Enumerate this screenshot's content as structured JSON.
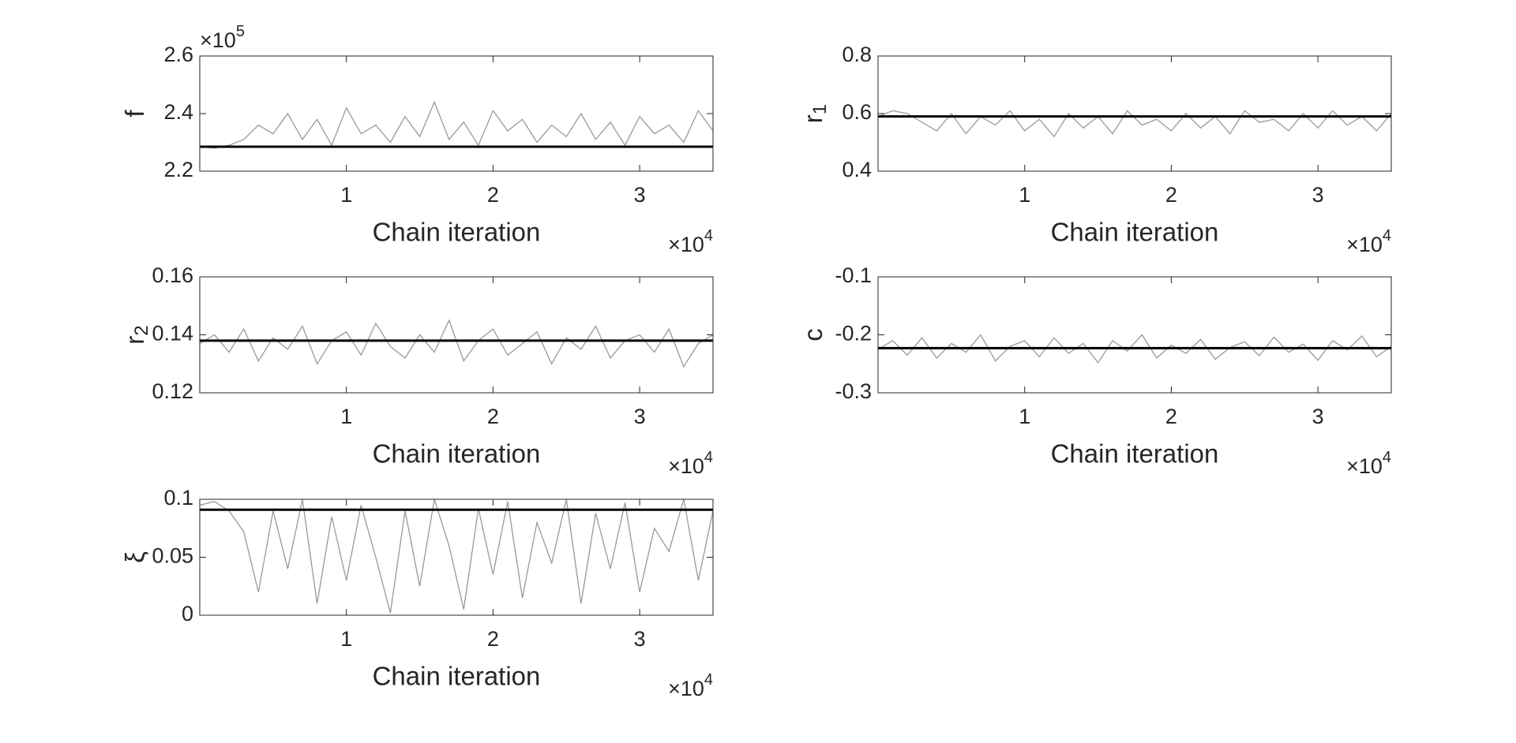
{
  "chart_data": [
    {
      "type": "line",
      "ylabel": "f",
      "xlabel": "Chain iteration",
      "x_multiplier": {
        "base": "×10",
        "power": "4"
      },
      "y_multiplier": {
        "base": "×10",
        "power": "5"
      },
      "xlim": [
        0,
        35000
      ],
      "xticks": [
        {
          "value": 10000,
          "label": "1"
        },
        {
          "value": 20000,
          "label": "2"
        },
        {
          "value": 30000,
          "label": "3"
        }
      ],
      "ylim": [
        220000,
        260000
      ],
      "yticks": [
        {
          "value": 220000,
          "label": "2.2"
        },
        {
          "value": 240000,
          "label": "2.4"
        },
        {
          "value": 260000,
          "label": "2.6"
        }
      ],
      "x": [
        0,
        1000,
        2000,
        3000,
        4000,
        5000,
        6000,
        7000,
        8000,
        9000,
        10000,
        11000,
        12000,
        13000,
        14000,
        15000,
        16000,
        17000,
        18000,
        19000,
        20000,
        21000,
        22000,
        23000,
        24000,
        25000,
        26000,
        27000,
        28000,
        29000,
        30000,
        31000,
        32000,
        33000,
        34000,
        35000
      ],
      "values": [
        228500,
        228000,
        229000,
        231000,
        236000,
        233000,
        240000,
        231000,
        238000,
        229000,
        242000,
        233000,
        236000,
        230000,
        239000,
        232000,
        244000,
        231000,
        237000,
        229000,
        241000,
        234000,
        238000,
        230000,
        236000,
        232000,
        240000,
        231000,
        237000,
        229000,
        239000,
        233000,
        236000,
        230000,
        241000,
        234000
      ],
      "color": "#999999",
      "reference_line": {
        "value": 228500,
        "color": "#000000"
      }
    },
    {
      "type": "line",
      "ylabel": "r",
      "ylabel_subscript": "1",
      "xlabel": "Chain iteration",
      "x_multiplier": {
        "base": "×10",
        "power": "4"
      },
      "xlim": [
        0,
        35000
      ],
      "xticks": [
        {
          "value": 10000,
          "label": "1"
        },
        {
          "value": 20000,
          "label": "2"
        },
        {
          "value": 30000,
          "label": "3"
        }
      ],
      "ylim": [
        0.4,
        0.8
      ],
      "yticks": [
        0.4,
        0.6,
        0.8
      ],
      "x": [
        0,
        1000,
        2000,
        3000,
        4000,
        5000,
        6000,
        7000,
        8000,
        9000,
        10000,
        11000,
        12000,
        13000,
        14000,
        15000,
        16000,
        17000,
        18000,
        19000,
        20000,
        21000,
        22000,
        23000,
        24000,
        25000,
        26000,
        27000,
        28000,
        29000,
        30000,
        31000,
        32000,
        33000,
        34000,
        35000
      ],
      "values": [
        0.59,
        0.61,
        0.6,
        0.57,
        0.54,
        0.6,
        0.53,
        0.59,
        0.56,
        0.61,
        0.54,
        0.58,
        0.52,
        0.6,
        0.55,
        0.59,
        0.53,
        0.61,
        0.56,
        0.58,
        0.54,
        0.6,
        0.55,
        0.59,
        0.53,
        0.61,
        0.57,
        0.58,
        0.54,
        0.6,
        0.55,
        0.61,
        0.56,
        0.59,
        0.54,
        0.6
      ],
      "color": "#999999",
      "reference_line": {
        "value": 0.59,
        "color": "#000000"
      }
    },
    {
      "type": "line",
      "ylabel": "r",
      "ylabel_subscript": "2",
      "xlabel": "Chain iteration",
      "x_multiplier": {
        "base": "×10",
        "power": "4"
      },
      "xlim": [
        0,
        35000
      ],
      "xticks": [
        {
          "value": 10000,
          "label": "1"
        },
        {
          "value": 20000,
          "label": "2"
        },
        {
          "value": 30000,
          "label": "3"
        }
      ],
      "ylim": [
        0.12,
        0.16
      ],
      "yticks": [
        0.12,
        0.14,
        0.16
      ],
      "x": [
        0,
        1000,
        2000,
        3000,
        4000,
        5000,
        6000,
        7000,
        8000,
        9000,
        10000,
        11000,
        12000,
        13000,
        14000,
        15000,
        16000,
        17000,
        18000,
        19000,
        20000,
        21000,
        22000,
        23000,
        24000,
        25000,
        26000,
        27000,
        28000,
        29000,
        30000,
        31000,
        32000,
        33000,
        34000,
        35000
      ],
      "values": [
        0.137,
        0.14,
        0.134,
        0.142,
        0.131,
        0.139,
        0.135,
        0.143,
        0.13,
        0.138,
        0.141,
        0.133,
        0.144,
        0.136,
        0.132,
        0.14,
        0.134,
        0.145,
        0.131,
        0.138,
        0.142,
        0.133,
        0.137,
        0.141,
        0.13,
        0.139,
        0.135,
        0.143,
        0.132,
        0.138,
        0.14,
        0.134,
        0.142,
        0.129,
        0.137,
        0.14
      ],
      "color": "#999999",
      "reference_line": {
        "value": 0.138,
        "color": "#000000"
      }
    },
    {
      "type": "line",
      "ylabel": "c",
      "xlabel": "Chain iteration",
      "x_multiplier": {
        "base": "×10",
        "power": "4"
      },
      "xlim": [
        0,
        35000
      ],
      "xticks": [
        {
          "value": 10000,
          "label": "1"
        },
        {
          "value": 20000,
          "label": "2"
        },
        {
          "value": 30000,
          "label": "3"
        }
      ],
      "ylim": [
        -0.3,
        -0.1
      ],
      "yticks": [
        -0.3,
        -0.2,
        -0.1
      ],
      "x": [
        0,
        1000,
        2000,
        3000,
        4000,
        5000,
        6000,
        7000,
        8000,
        9000,
        10000,
        11000,
        12000,
        13000,
        14000,
        15000,
        16000,
        17000,
        18000,
        19000,
        20000,
        21000,
        22000,
        23000,
        24000,
        25000,
        26000,
        27000,
        28000,
        29000,
        30000,
        31000,
        32000,
        33000,
        34000,
        35000
      ],
      "values": [
        -0.225,
        -0.21,
        -0.235,
        -0.205,
        -0.24,
        -0.215,
        -0.23,
        -0.2,
        -0.245,
        -0.22,
        -0.21,
        -0.238,
        -0.205,
        -0.232,
        -0.215,
        -0.248,
        -0.21,
        -0.228,
        -0.2,
        -0.24,
        -0.218,
        -0.232,
        -0.208,
        -0.242,
        -0.222,
        -0.212,
        -0.236,
        -0.204,
        -0.23,
        -0.216,
        -0.244,
        -0.21,
        -0.226,
        -0.202,
        -0.238,
        -0.22
      ],
      "color": "#999999",
      "reference_line": {
        "value": -0.223,
        "color": "#000000"
      }
    },
    {
      "type": "line",
      "ylabel": "ξ",
      "xlabel": "Chain iteration",
      "x_multiplier": {
        "base": "×10",
        "power": "4"
      },
      "xlim": [
        0,
        35000
      ],
      "xticks": [
        {
          "value": 10000,
          "label": "1"
        },
        {
          "value": 20000,
          "label": "2"
        },
        {
          "value": 30000,
          "label": "3"
        }
      ],
      "ylim": [
        0,
        0.1
      ],
      "yticks": [
        0,
        0.05,
        0.1
      ],
      "x": [
        0,
        1000,
        2000,
        3000,
        4000,
        5000,
        6000,
        7000,
        8000,
        9000,
        10000,
        11000,
        12000,
        13000,
        14000,
        15000,
        16000,
        17000,
        18000,
        19000,
        20000,
        21000,
        22000,
        23000,
        24000,
        25000,
        26000,
        27000,
        28000,
        29000,
        30000,
        31000,
        32000,
        33000,
        34000,
        35000
      ],
      "values": [
        0.095,
        0.098,
        0.09,
        0.072,
        0.02,
        0.09,
        0.04,
        0.1,
        0.01,
        0.085,
        0.03,
        0.095,
        0.05,
        0.002,
        0.09,
        0.025,
        0.1,
        0.06,
        0.005,
        0.092,
        0.035,
        0.098,
        0.015,
        0.08,
        0.045,
        0.1,
        0.01,
        0.088,
        0.04,
        0.097,
        0.02,
        0.075,
        0.055,
        0.1,
        0.03,
        0.09
      ],
      "color": "#999999",
      "reference_line": {
        "value": 0.091,
        "color": "#000000"
      }
    }
  ]
}
